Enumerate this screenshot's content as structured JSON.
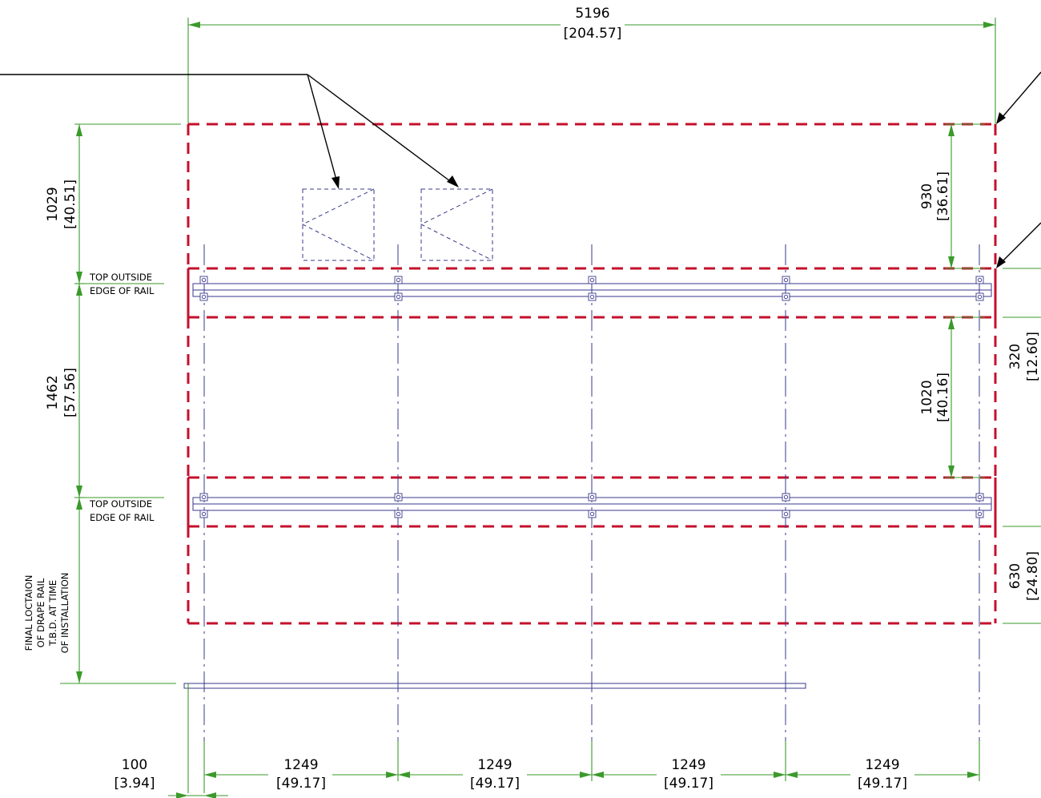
{
  "dimensions": {
    "overall_width": {
      "value": "5196",
      "inch": "[204.57]"
    },
    "top_zone_height": {
      "value": "1029",
      "inch": "[40.51]"
    },
    "rail_spacing": {
      "value": "1462",
      "inch": "[57.56]"
    },
    "upper_gap": {
      "value": "930",
      "inch": "[36.61]"
    },
    "middle_gap": {
      "value": "1020",
      "inch": "[40.16]"
    },
    "rail_zone": {
      "value": "320",
      "inch": "[12.60]"
    },
    "bottom_zone": {
      "value": "630",
      "inch": "[24.80]"
    },
    "edge_offset": {
      "value": "100",
      "inch": "[3.94]"
    },
    "bay_1": {
      "value": "1249",
      "inch": "[49.17]"
    },
    "bay_2": {
      "value": "1249",
      "inch": "[49.17]"
    },
    "bay_3": {
      "value": "1249",
      "inch": "[49.17]"
    },
    "bay_4": {
      "value": "1249",
      "inch": "[49.17]"
    }
  },
  "notes": {
    "rail_edge_upper": {
      "line1": "TOP OUTSIDE",
      "line2": "EDGE OF RAIL"
    },
    "rail_edge_lower": {
      "line1": "TOP OUTSIDE",
      "line2": "EDGE OF RAIL"
    },
    "drape_rail": {
      "line1": "FINAL LOCTAION",
      "line2": "OF DRAPE RAIL",
      "line3": "T.B.D. AT TIME",
      "line4": "OF INSTALLATION"
    }
  },
  "colors": {
    "dimension": "#3a9a2a",
    "zone_boundary": "#c4102c",
    "structure": "#3a3a8c",
    "leader": "#000000"
  }
}
